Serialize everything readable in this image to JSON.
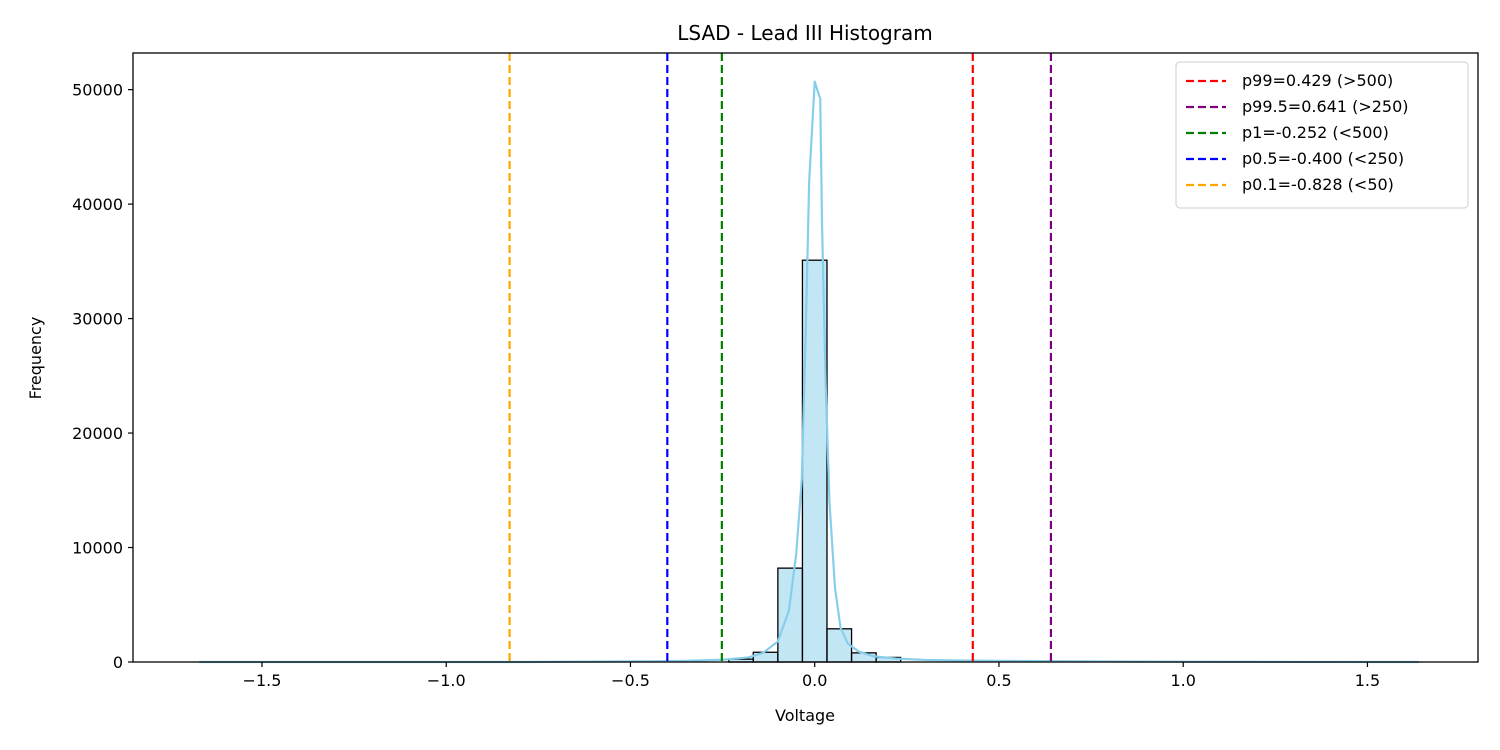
{
  "chart_data": {
    "type": "bar",
    "title": "LSAD - Lead III Histogram",
    "xlabel": "Voltage",
    "ylabel": "Frequency",
    "xlim": [
      -1.85,
      1.8
    ],
    "ylim": [
      0,
      53200
    ],
    "xticks": [
      -1.5,
      -1.0,
      -0.5,
      0.0,
      0.5,
      1.0,
      1.5
    ],
    "xtick_labels": [
      "−1.5",
      "−1.0",
      "−0.5",
      "0.0",
      "0.5",
      "1.0",
      "1.5"
    ],
    "yticks": [
      0,
      10000,
      20000,
      30000,
      40000,
      50000
    ],
    "ytick_labels": [
      "0",
      "10000",
      "20000",
      "30000",
      "40000",
      "50000"
    ],
    "grid": false,
    "legend_position": "top-right",
    "histogram": {
      "bar_color": "#87ceeb",
      "bar_opacity": 0.5,
      "edge_color": "#000000",
      "bin_width": 0.0667,
      "bins": [
        {
          "x0": -0.2333,
          "x1": -0.1667,
          "count": 250
        },
        {
          "x0": -0.1667,
          "x1": -0.1,
          "count": 850
        },
        {
          "x0": -0.1,
          "x1": -0.0333,
          "count": 8200
        },
        {
          "x0": -0.0333,
          "x1": 0.0333,
          "count": 35100
        },
        {
          "x0": 0.0333,
          "x1": 0.1,
          "count": 2900
        },
        {
          "x0": 0.1,
          "x1": 0.1667,
          "count": 800
        },
        {
          "x0": 0.1667,
          "x1": 0.2333,
          "count": 400
        }
      ]
    },
    "kde": {
      "color": "#87ceeb",
      "points": [
        [
          -1.67,
          0
        ],
        [
          -1.0,
          0
        ],
        [
          -0.8,
          0
        ],
        [
          -0.6,
          30
        ],
        [
          -0.45,
          60
        ],
        [
          -0.35,
          100
        ],
        [
          -0.25,
          200
        ],
        [
          -0.18,
          400
        ],
        [
          -0.14,
          800
        ],
        [
          -0.1,
          1800
        ],
        [
          -0.07,
          4500
        ],
        [
          -0.05,
          9500
        ],
        [
          -0.035,
          16000
        ],
        [
          -0.025,
          28000
        ],
        [
          -0.015,
          42000
        ],
        [
          0.0,
          50700
        ],
        [
          0.015,
          49200
        ],
        [
          0.02,
          38000
        ],
        [
          0.03,
          24000
        ],
        [
          0.04,
          14000
        ],
        [
          0.055,
          6500
        ],
        [
          0.07,
          3000
        ],
        [
          0.09,
          1600
        ],
        [
          0.12,
          900
        ],
        [
          0.16,
          500
        ],
        [
          0.22,
          300
        ],
        [
          0.3,
          180
        ],
        [
          0.45,
          110
        ],
        [
          0.6,
          80
        ],
        [
          0.8,
          50
        ],
        [
          1.0,
          20
        ],
        [
          1.3,
          5
        ],
        [
          1.64,
          0
        ]
      ]
    },
    "vlines": [
      {
        "label": "p99=0.429 (>500)",
        "x": 0.429,
        "color": "#ff0000"
      },
      {
        "label": "p99.5=0.641 (>250)",
        "x": 0.641,
        "color": "#800080"
      },
      {
        "label": "p1=-0.252 (<500)",
        "x": -0.252,
        "color": "#008000"
      },
      {
        "label": "p0.5=-0.400 (<250)",
        "x": -0.4,
        "color": "#0000ff"
      },
      {
        "label": "p0.1=-0.828 (<50)",
        "x": -0.828,
        "color": "#ffa500"
      }
    ]
  }
}
